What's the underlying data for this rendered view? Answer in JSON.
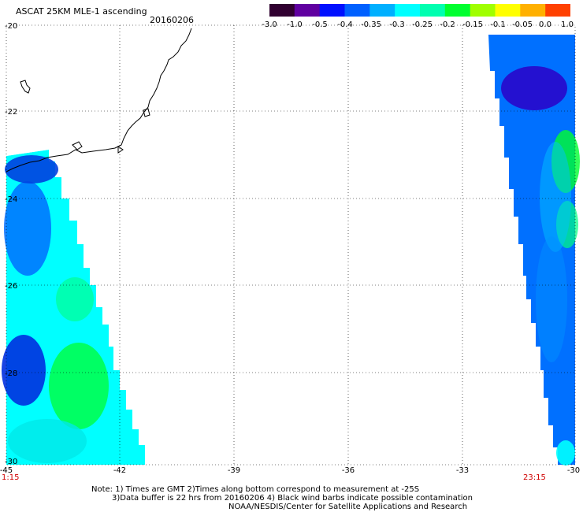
{
  "header": {
    "title": "ASCAT 25KM MLE-1 ascending",
    "date": "20160206"
  },
  "colorbar": {
    "labels": [
      "-3.0",
      "-1.0",
      "-0.5",
      "-0.4",
      "-0.35",
      "-0.3",
      "-0.25",
      "-0.2",
      "-0.15",
      "-0.1",
      "-0.05",
      "0.0",
      "1.0"
    ],
    "colors": [
      "#300030",
      "#6000a0",
      "#0010ff",
      "#0060ff",
      "#00b0ff",
      "#00ffff",
      "#00ffb0",
      "#00ff30",
      "#a0ff00",
      "#ffff00",
      "#ffb000",
      "#ff4000"
    ]
  },
  "map": {
    "lat_range": [
      -30,
      -20
    ],
    "lon_range": [
      -45,
      -30
    ],
    "lat_labels": [
      "-20",
      "-22",
      "-24",
      "-26",
      "-28",
      "-30"
    ],
    "lon_labels": [
      "-45",
      "-42",
      "-39",
      "-36",
      "-33",
      "-30"
    ],
    "time_left": "1:15",
    "time_right": "23:15"
  },
  "notes": {
    "line1": "Note: 1) Times are GMT 2)Times along bottom correspond to measurement at -25S",
    "line2": "3)Data buffer is 22 hrs from 20160206 4) Black wind barbs indicate possible contamination",
    "line3": "NOAA/NESDIS/Center for Satellite Applications and Research"
  }
}
